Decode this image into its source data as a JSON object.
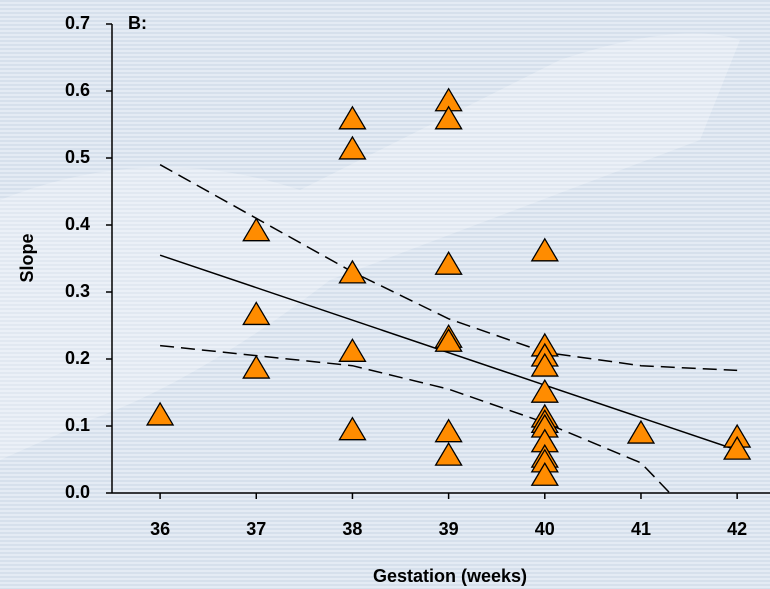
{
  "chart_data": {
    "type": "scatter",
    "annotation": "B:",
    "xlabel": "Gestation (weeks)",
    "ylabel": "Slope",
    "xlim": [
      35.5,
      42.3
    ],
    "ylim": [
      0,
      0.7
    ],
    "xticks": [
      36,
      37,
      38,
      39,
      40,
      41,
      42
    ],
    "yticks": [
      {
        "value": 0,
        "label": "0.0"
      },
      0.1,
      0.2,
      0.3,
      0.4,
      0.5,
      0.6,
      0.7
    ],
    "series": [
      {
        "type": "scatter",
        "color": "#ff8c00",
        "x": [
          36,
          37,
          37,
          37,
          38,
          38,
          38,
          38,
          38,
          39,
          39,
          39,
          39,
          39,
          39,
          39,
          40,
          40,
          40,
          40,
          40,
          40,
          40,
          40,
          40,
          40,
          40,
          40,
          41,
          42,
          42
        ],
        "values": [
          0.115,
          0.39,
          0.265,
          0.185,
          0.557,
          0.512,
          0.327,
          0.21,
          0.093,
          0.584,
          0.557,
          0.34,
          0.231,
          0.225,
          0.09,
          0.055,
          0.36,
          0.218,
          0.203,
          0.188,
          0.149,
          0.112,
          0.104,
          0.097,
          0.075,
          0.052,
          0.045,
          0.025,
          0.088,
          0.082,
          0.064
        ]
      },
      {
        "type": "line",
        "color": "#000000",
        "dash": false,
        "x": [
          36,
          42
        ],
        "values": [
          0.355,
          0.064
        ]
      },
      {
        "type": "line",
        "color": "#000000",
        "dash": true,
        "x": [
          36,
          37,
          38,
          39,
          40,
          41,
          42
        ],
        "values": [
          0.49,
          0.41,
          0.33,
          0.26,
          0.21,
          0.19,
          0.183
        ]
      },
      {
        "type": "line",
        "color": "#000000",
        "dash": true,
        "x": [
          36,
          37,
          38,
          39,
          40,
          41,
          41.3
        ],
        "values": [
          0.22,
          0.205,
          0.19,
          0.155,
          0.105,
          0.045,
          0
        ]
      }
    ]
  }
}
